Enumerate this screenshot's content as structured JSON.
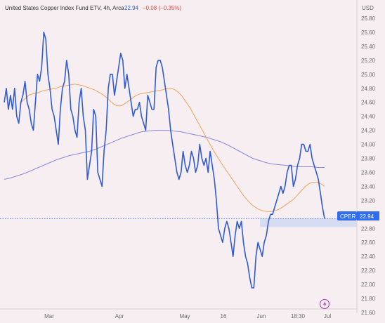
{
  "header": {
    "symbol_title": "United States Copper Index Fund ETV, 4h, Arca",
    "last_value": "22.94",
    "change": "−0.08 (−0.35%)"
  },
  "currency_label": "USD",
  "y_tick_labels": [
    "25.80",
    "25.60",
    "25.40",
    "25.20",
    "25.00",
    "24.80",
    "24.60",
    "24.40",
    "24.20",
    "24.00",
    "23.80",
    "23.60",
    "23.40",
    "23.20",
    "23.00",
    "22.80",
    "22.60",
    "22.40",
    "22.20",
    "22.00",
    "21.80",
    "21.60"
  ],
  "x_tick_labels": [
    "Mar",
    "Apr",
    "May",
    "16",
    "Jun",
    "18:30",
    "Jul"
  ],
  "price_tag": {
    "symbol": "CPER",
    "value": "22.94"
  },
  "colors": {
    "price_line": "#2f5bd8",
    "ma_fast": "#f0a25c",
    "ma_slow": "#8a86e0",
    "tag_bg": "#2f6cf0",
    "range_fill": "#c9d6f2",
    "grid": "#e8e0e2"
  },
  "icons": {
    "logo": "tradingview-bolt-icon"
  },
  "chart_data": {
    "type": "line",
    "title": "United States Copper Index Fund ETV, 4h, Arca",
    "ylabel": "USD",
    "ylim": [
      21.6,
      25.9
    ],
    "x_tick_labels": [
      "Mar",
      "Apr",
      "May",
      "16",
      "Jun",
      "18:30",
      "Jul"
    ],
    "series": [
      {
        "name": "price",
        "values": [
          24.6,
          24.8,
          24.5,
          24.7,
          24.5,
          24.8,
          24.4,
          24.3,
          24.6,
          24.7,
          24.9,
          24.6,
          24.5,
          24.3,
          24.2,
          24.6,
          25.0,
          24.9,
          25.1,
          25.6,
          25.5,
          25.0,
          24.8,
          24.5,
          24.4,
          24.2,
          24.0,
          24.5,
          24.8,
          24.9,
          25.2,
          25.0,
          24.5,
          24.4,
          24.2,
          24.1,
          24.6,
          24.8,
          24.4,
          24.2,
          23.5,
          23.7,
          23.9,
          24.5,
          24.4,
          23.6,
          23.5,
          23.4,
          23.9,
          24.2,
          24.8,
          25.0,
          25.0,
          24.7,
          24.9,
          25.1,
          25.3,
          25.2,
          24.8,
          25.0,
          24.8,
          24.6,
          24.4,
          24.5,
          24.5,
          24.6,
          24.4,
          24.3,
          24.2,
          24.7,
          24.6,
          24.5,
          24.5,
          25.1,
          25.2,
          25.2,
          25.1,
          24.9,
          24.7,
          24.5,
          24.2,
          24.0,
          23.8,
          23.6,
          23.5,
          23.6,
          23.9,
          23.7,
          23.6,
          23.7,
          23.9,
          23.8,
          23.6,
          23.7,
          24.0,
          23.8,
          23.7,
          23.8,
          23.6,
          23.9,
          23.7,
          23.5,
          23.2,
          22.8,
          22.7,
          22.6,
          22.8,
          22.9,
          22.8,
          22.6,
          22.4,
          22.7,
          22.9,
          22.8,
          22.9,
          22.6,
          22.4,
          22.3,
          22.1,
          21.95,
          21.95,
          22.4,
          22.6,
          22.5,
          22.4,
          22.6,
          22.7,
          22.9,
          23.0,
          23.0,
          23.1,
          23.2,
          23.3,
          23.4,
          23.3,
          23.4,
          23.6,
          23.7,
          23.7,
          23.4,
          23.5,
          23.7,
          23.8,
          24.0,
          24.0,
          23.9,
          23.9,
          24.0,
          23.8,
          23.7,
          23.6,
          23.5,
          23.3,
          23.1,
          22.94
        ]
      },
      {
        "name": "moving-average-fast",
        "values": [
          24.6,
          24.65,
          24.7,
          24.72,
          24.73,
          24.75,
          24.77,
          24.78,
          24.79,
          24.8,
          24.82,
          24.83,
          24.84,
          24.85,
          24.86,
          24.85,
          24.84,
          24.82,
          24.8,
          24.78,
          24.75,
          24.72,
          24.68,
          24.63,
          24.58,
          24.55,
          24.55,
          24.58,
          24.62,
          24.66,
          24.7,
          24.72,
          24.73,
          24.74,
          24.75,
          24.76,
          24.77,
          24.78,
          24.8,
          24.8,
          24.78,
          24.74,
          24.68,
          24.6,
          24.52,
          24.42,
          24.32,
          24.22,
          24.12,
          24.02,
          23.92,
          23.83,
          23.74,
          23.66,
          23.58,
          23.5,
          23.42,
          23.34,
          23.26,
          23.2,
          23.14,
          23.1,
          23.07,
          23.05,
          23.04,
          23.04,
          23.05,
          23.07,
          23.1,
          23.14,
          23.18,
          23.22,
          23.28,
          23.34,
          23.4,
          23.44,
          23.46,
          23.46,
          23.44,
          23.4
        ]
      },
      {
        "name": "moving-average-slow",
        "values": [
          23.5,
          23.52,
          23.55,
          23.58,
          23.62,
          23.66,
          23.7,
          23.74,
          23.78,
          23.81,
          23.84,
          23.86,
          23.88,
          23.9,
          23.93,
          23.97,
          24.01,
          24.05,
          24.09,
          24.12,
          24.15,
          24.18,
          24.19,
          24.2,
          24.2,
          24.2,
          24.19,
          24.18,
          24.16,
          24.14,
          24.12,
          24.1,
          24.07,
          24.04,
          24.0,
          23.95,
          23.9,
          23.85,
          23.8,
          23.77,
          23.74,
          23.72,
          23.71,
          23.7,
          23.69,
          23.68,
          23.68,
          23.68,
          23.67,
          23.67
        ]
      }
    ],
    "last_price": 22.94,
    "legend_position": "top-left",
    "grid": false
  }
}
